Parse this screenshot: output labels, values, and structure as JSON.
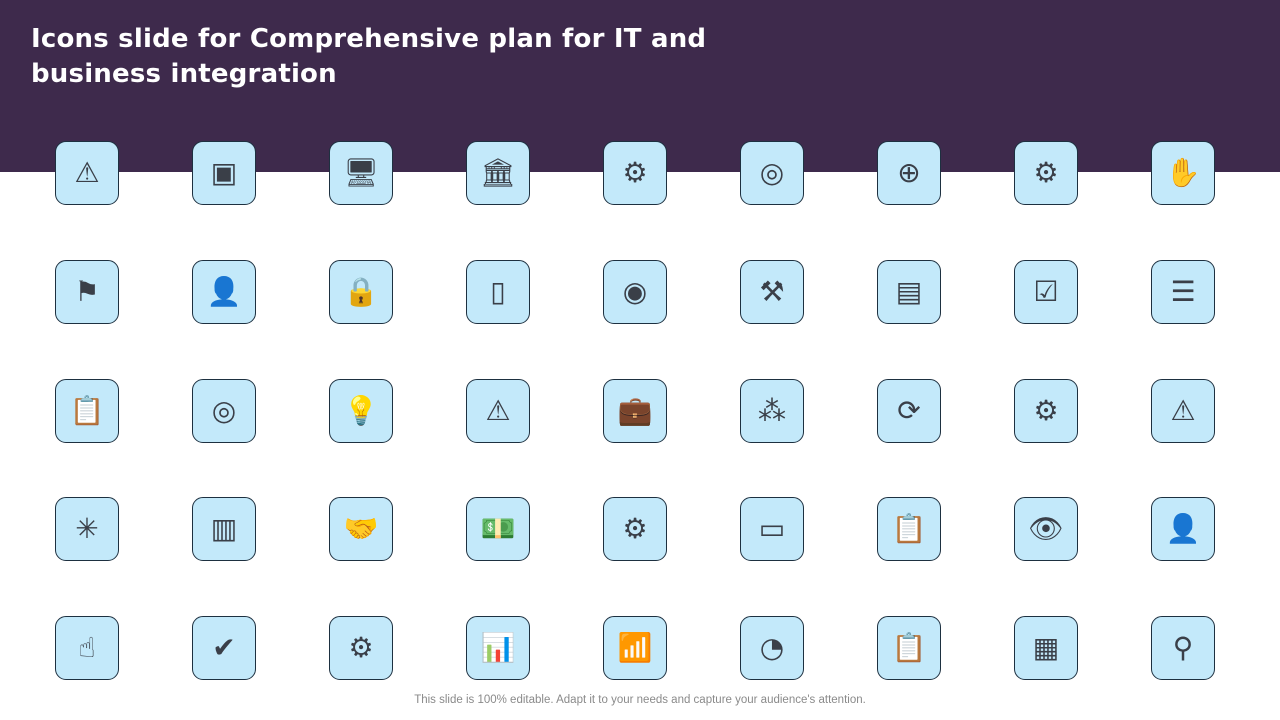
{
  "slide": {
    "title": "Icons slide for Comprehensive plan for IT and business integration",
    "footer": "This slide is 100% editable. Adapt it to your needs and capture your audience's attention."
  },
  "colors": {
    "header": "#3e2a4c",
    "tile": "#c3e9fa",
    "tile_border": "#1d3040",
    "icon": "#3a3f48"
  },
  "icons": [
    {
      "name": "risk-money-hand-icon",
      "glyph": "⚠"
    },
    {
      "name": "network-square-nodes-icon",
      "glyph": "▣"
    },
    {
      "name": "secure-computer-icon",
      "glyph": "🖥"
    },
    {
      "name": "bank-auction-icon",
      "glyph": "🏛"
    },
    {
      "name": "box-gear-icon",
      "glyph": "⚙"
    },
    {
      "name": "target-check-arrows-icon",
      "glyph": "◎"
    },
    {
      "name": "connected-operations-icon",
      "glyph": "⊕"
    },
    {
      "name": "gear-alert-icon",
      "glyph": "⚙"
    },
    {
      "name": "hands-protect-icon",
      "glyph": "✋"
    },
    {
      "name": "mountain-flag-icon",
      "glyph": "⚑"
    },
    {
      "name": "gear-businessman-icon",
      "glyph": "👤"
    },
    {
      "name": "network-lock-icon",
      "glyph": "🔒"
    },
    {
      "name": "tablet-password-icon",
      "glyph": "▯"
    },
    {
      "name": "film-reel-arrows-icon",
      "glyph": "◉"
    },
    {
      "name": "tools-gear-icon",
      "glyph": "⚒"
    },
    {
      "name": "browser-toolbox-icon",
      "glyph": "▤"
    },
    {
      "name": "mobile-touch-check-icon",
      "glyph": "☑"
    },
    {
      "name": "database-star-icon",
      "glyph": "☰"
    },
    {
      "name": "clipboard-icon",
      "glyph": "📋"
    },
    {
      "name": "target-arrow-icon",
      "glyph": "◎"
    },
    {
      "name": "lightbulb-gear-icon",
      "glyph": "💡"
    },
    {
      "name": "warning-hand-icon",
      "glyph": "⚠"
    },
    {
      "name": "briefcase-chart-icon",
      "glyph": "💼"
    },
    {
      "name": "team-meeting-icon",
      "glyph": "⁂"
    },
    {
      "name": "gear-person-cycle-icon",
      "glyph": "⟳"
    },
    {
      "name": "hand-gear-dollar-icon",
      "glyph": "⚙"
    },
    {
      "name": "warning-triangle-icon",
      "glyph": "⚠"
    },
    {
      "name": "network-hub-icon",
      "glyph": "✳"
    },
    {
      "name": "server-icon",
      "glyph": "▥"
    },
    {
      "name": "handshake-steps-icon",
      "glyph": "🤝"
    },
    {
      "name": "money-download-icon",
      "glyph": "💵"
    },
    {
      "name": "gear-cycle-icon",
      "glyph": "⚙"
    },
    {
      "name": "dashboard-screen-icon",
      "glyph": "▭"
    },
    {
      "name": "clipboard-gear-icon",
      "glyph": "📋"
    },
    {
      "name": "building-eye-icon",
      "glyph": "👁"
    },
    {
      "name": "person-network-icon",
      "glyph": "👤"
    },
    {
      "name": "presentation-touch-icon",
      "glyph": "☝"
    },
    {
      "name": "hand-gear-check-icon",
      "glyph": "✔"
    },
    {
      "name": "gear-person-clock-icon",
      "glyph": "⚙"
    },
    {
      "name": "bar-chart-check-icon",
      "glyph": "📊"
    },
    {
      "name": "career-growth-flag-icon",
      "glyph": "📶"
    },
    {
      "name": "gauge-hand-icon",
      "glyph": "◔"
    },
    {
      "name": "clipboard-strategy-icon",
      "glyph": "📋"
    },
    {
      "name": "whiteboard-strategy-icon",
      "glyph": "▦"
    },
    {
      "name": "person-success-icon",
      "glyph": "⚲"
    }
  ]
}
